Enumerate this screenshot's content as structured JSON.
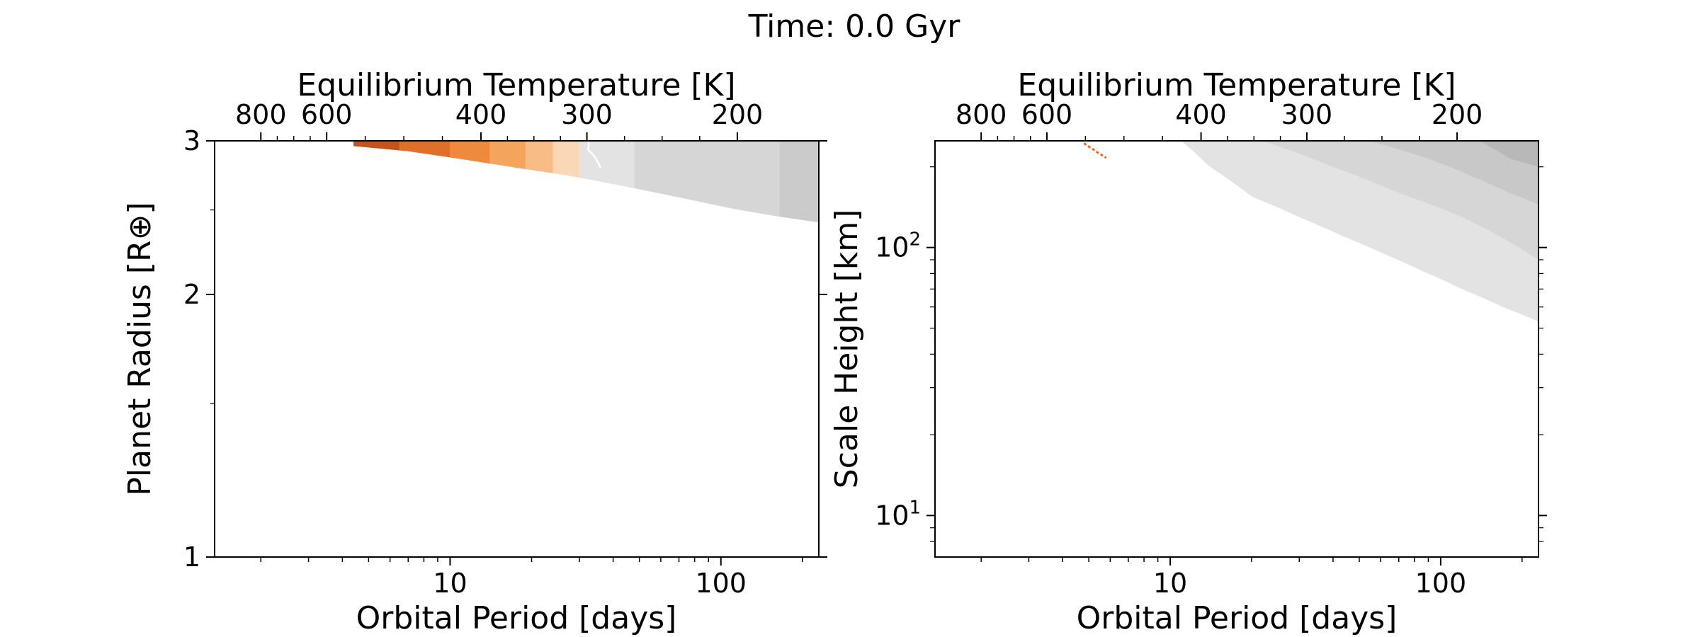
{
  "figure": {
    "title": "Time: 0.0 Gyr"
  },
  "chart_data": [
    {
      "type": "heatmap",
      "xlabel": "Orbital Period [days]",
      "ylabel": "Planet Radius [R⊕]",
      "top_xlabel": "Equilibrium Temperature [K]",
      "x_scale": "log",
      "y_scale": "log",
      "xlim": [
        1.35,
        230
      ],
      "ylim": [
        1,
        3
      ],
      "x_ticks": [
        {
          "value": 10,
          "label": "10"
        },
        {
          "value": 100,
          "label": "100"
        }
      ],
      "y_ticks": [
        {
          "value": 1,
          "label": "1"
        },
        {
          "value": 2,
          "label": "2"
        },
        {
          "value": 3,
          "label": "3"
        }
      ],
      "top_ticks": [
        {
          "period": 2.0,
          "label": "800"
        },
        {
          "period": 3.5,
          "label": "600"
        },
        {
          "period": 13.0,
          "label": "400"
        },
        {
          "period": 32.0,
          "label": "300"
        },
        {
          "period": 115.0,
          "label": "200"
        }
      ],
      "boundary_period": [
        4.4,
        7.0,
        11.0,
        17.0,
        27.0,
        42.0,
        68.0,
        110.0,
        160.0,
        230.0
      ],
      "boundary_radius": [
        2.96,
        2.92,
        2.86,
        2.8,
        2.74,
        2.67,
        2.59,
        2.51,
        2.46,
        2.42
      ],
      "regions": [
        {
          "from": 4.4,
          "to": 6.5,
          "color": "#c4541c"
        },
        {
          "from": 6.5,
          "to": 10.0,
          "color": "#e06f2a"
        },
        {
          "from": 10.0,
          "to": 14.0,
          "color": "#ef8a3c"
        },
        {
          "from": 14.0,
          "to": 19.0,
          "color": "#f5a45c"
        },
        {
          "from": 19.0,
          "to": 24.0,
          "color": "#f8bd87"
        },
        {
          "from": 24.0,
          "to": 30.0,
          "color": "#fad8b7"
        },
        {
          "from": 30.0,
          "to": 48.0,
          "color": "#e3e3e3"
        },
        {
          "from": 48.0,
          "to": 165.0,
          "color": "#d6d6d6"
        },
        {
          "from": 165.0,
          "to": 230.0,
          "color": "#cbcbcb"
        }
      ]
    },
    {
      "type": "heatmap",
      "xlabel": "Orbital Period [days]",
      "ylabel": "Scale Height [km]",
      "top_xlabel": "Equilibrium Temperature [K]",
      "x_scale": "log",
      "y_scale": "log",
      "xlim": [
        1.35,
        230
      ],
      "ylim": [
        7,
        250
      ],
      "x_ticks": [
        {
          "value": 10,
          "label": "10"
        },
        {
          "value": 100,
          "label": "100"
        }
      ],
      "y_ticks": [
        {
          "value": 10,
          "label": "10",
          "exp": "1"
        },
        {
          "value": 100,
          "label": "10",
          "exp": "2"
        }
      ],
      "top_ticks": [
        {
          "period": 2.0,
          "label": "800"
        },
        {
          "period": 3.5,
          "label": "600"
        },
        {
          "period": 13.0,
          "label": "400"
        },
        {
          "period": 32.0,
          "label": "300"
        },
        {
          "period": 115.0,
          "label": "200"
        }
      ],
      "lower_boundary_period": [
        11.0,
        14.0,
        20.0,
        30.0,
        42.0,
        60.0,
        85.0,
        120.0,
        170.0,
        230.0
      ],
      "lower_boundary_height": [
        250,
        200,
        155,
        130,
        112,
        96,
        82,
        70,
        60,
        53
      ],
      "bands": [
        {
          "color": "#e3e3e3",
          "edge_period": [
            11.0,
            30.0,
            60.0,
            120.0,
            230.0
          ],
          "edge_height": [
            250,
            250,
            250,
            250,
            250
          ]
        },
        {
          "color": "#d6d6d6",
          "edge_period": [
            22.0,
            40.0,
            70.0,
            120.0,
            180.0,
            230.0
          ],
          "edge_height": [
            250,
            200,
            160,
            130,
            105,
            90
          ]
        },
        {
          "color": "#c8c8c8",
          "edge_period": [
            55.0,
            90.0,
            130.0,
            180.0,
            230.0
          ],
          "edge_height": [
            250,
            215,
            185,
            160,
            145
          ]
        },
        {
          "color": "#b8b8b8",
          "edge_period": [
            140.0,
            180.0,
            230.0
          ],
          "edge_height": [
            250,
            215,
            200
          ]
        }
      ],
      "orange_streak": {
        "period": [
          4.8,
          5.0,
          5.2,
          5.4,
          5.6,
          5.8
        ],
        "height": [
          245,
          238,
          232,
          226,
          221,
          216
        ],
        "color": "#e06f2a"
      }
    }
  ]
}
